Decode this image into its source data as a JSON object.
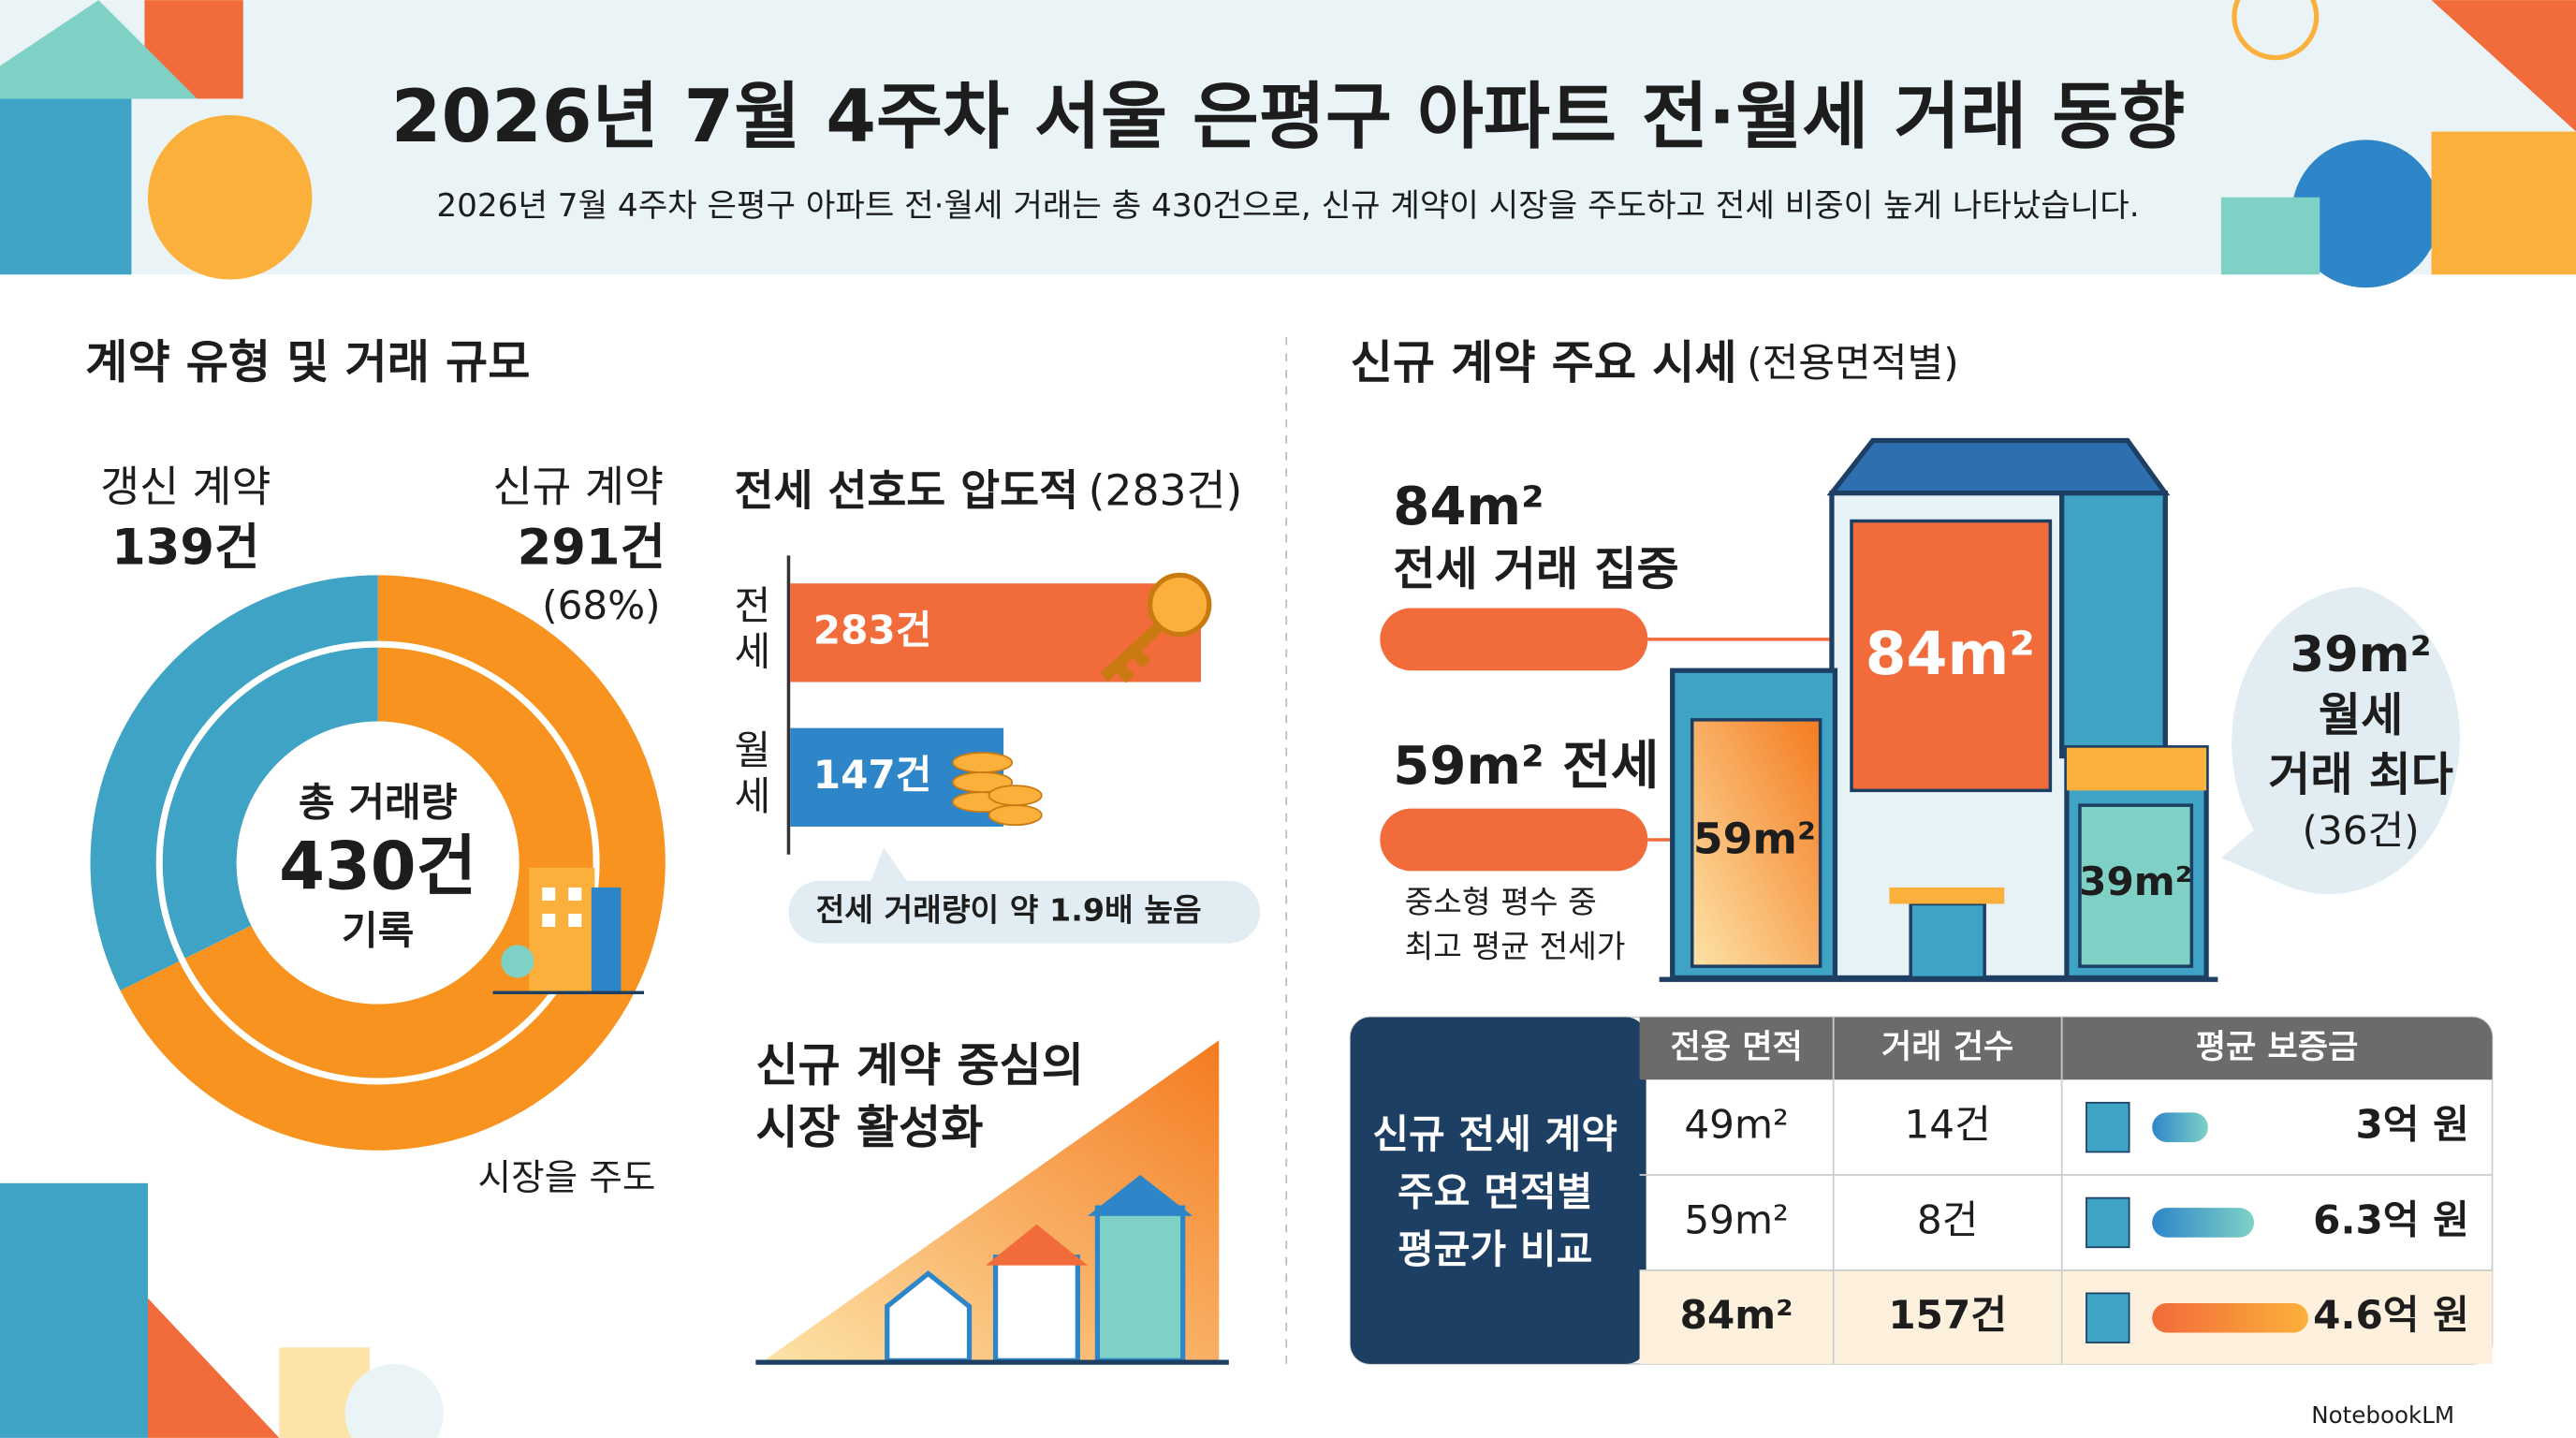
{
  "header": {
    "title": "2026년 7월 4주차 서울 은평구 아파트 전·월세 거래 동향",
    "subtitle": "2026년 7월 4주차 은평구 아파트 전·월세 거래는 총 430건으로, 신규 계약이 시장을 주도하고 전세 비중이 높게 나타났습니다."
  },
  "left_section": {
    "title": "계약 유형 및 거래 규모"
  },
  "chart_data": [
    {
      "type": "donut",
      "categories": [
        "갱신 계약",
        "신규 계약"
      ],
      "values": [
        139,
        291
      ],
      "value_labels": [
        "139건",
        "291건"
      ],
      "colors": [
        "#3ea3c4",
        "#f7931e"
      ],
      "share_label": "(68%)",
      "center": [
        "총 거래량",
        "430건",
        "기록"
      ],
      "annotation": "시장을 주도"
    },
    {
      "type": "bar",
      "title": "전세 선호도 압도적",
      "subtitle": "(283건)",
      "categories": [
        "전세",
        "월세"
      ],
      "values": [
        283,
        147
      ],
      "value_labels": [
        "283건",
        "147건"
      ],
      "colors": [
        "#f26b3a",
        "#2e86c8"
      ],
      "annotation": "전세 거래량이 약 1.9배 높음"
    }
  ],
  "market": {
    "lines": [
      "신규 계약 중심의",
      "시장 활성화"
    ]
  },
  "right_section": {
    "title": "신규 계약 주요 시세",
    "subtitle": "(전용면적별)",
    "callout_84": [
      "84m²",
      "전세 거래 집중"
    ],
    "callout_59": "59m² 전세",
    "note_59": [
      "중소형 평수 중",
      "최고 평균 전세가"
    ],
    "building_labels": [
      "84m²",
      "59m²",
      "39m²"
    ],
    "bubble": [
      "39m²",
      "월세",
      "거래 최다",
      "(36건)"
    ]
  },
  "table": {
    "side": [
      "신규 전세 계약",
      "주요 면적별",
      "평균가 비교"
    ],
    "header": [
      "전용 면적",
      "거래 건수",
      "평균 보증금"
    ],
    "rows": [
      [
        "49m²",
        "14건",
        "3억 원"
      ],
      [
        "59m²",
        "8건",
        "6.3억 원"
      ],
      [
        "84m²",
        "157건",
        "4.6억 원"
      ]
    ]
  },
  "footer": "NotebookLM"
}
